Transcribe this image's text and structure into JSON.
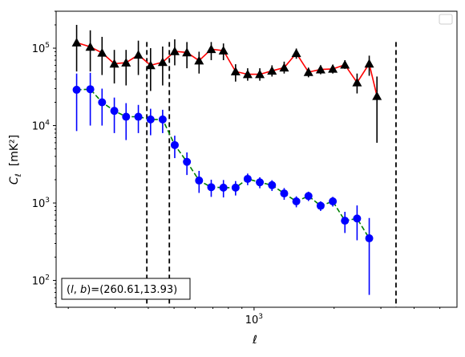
{
  "chart_data": {
    "type": "scatter",
    "xscale": "log",
    "yscale": "log",
    "xlim": [
      180,
      5800
    ],
    "ylim": [
      45,
      300000
    ],
    "xlabel": "ℓ",
    "ylabel": "C_ℓ  [mK²]",
    "x_tick_labels": [
      {
        "value": 1000,
        "label": "10^3"
      }
    ],
    "y_tick_labels": [
      {
        "value": 100,
        "label": "10^2"
      },
      {
        "value": 1000,
        "label": "10^3"
      },
      {
        "value": 10000,
        "label": "10^4"
      },
      {
        "value": 100000,
        "label": "10^5"
      }
    ],
    "annotation": "(l, b)=(260.61,13.93)",
    "legend": {
      "placement": "top-right",
      "entries": []
    },
    "vlines": [
      395,
      480,
      3420
    ],
    "series": [
      {
        "marker": "triangle",
        "marker_color": "#000000",
        "line_color": "#ff0000",
        "line_style": "solid",
        "points": [
          {
            "x": 215,
            "y": 118000,
            "lo": 50000,
            "hi": 200000
          },
          {
            "x": 242,
            "y": 104000,
            "lo": 50000,
            "hi": 170000
          },
          {
            "x": 268,
            "y": 87000,
            "lo": 45000,
            "hi": 140000
          },
          {
            "x": 298,
            "y": 63000,
            "lo": 35000,
            "hi": 95000
          },
          {
            "x": 330,
            "y": 65000,
            "lo": 33000,
            "hi": 95000
          },
          {
            "x": 367,
            "y": 82000,
            "lo": 45000,
            "hi": 125000
          },
          {
            "x": 408,
            "y": 60000,
            "lo": 28000,
            "hi": 100000
          },
          {
            "x": 453,
            "y": 66000,
            "lo": 33000,
            "hi": 105000
          },
          {
            "x": 503,
            "y": 91000,
            "lo": 60000,
            "hi": 130000
          },
          {
            "x": 559,
            "y": 88000,
            "lo": 55000,
            "hi": 120000
          },
          {
            "x": 621,
            "y": 69000,
            "lo": 47000,
            "hi": 90000
          },
          {
            "x": 690,
            "y": 97000,
            "lo": 70000,
            "hi": 120000
          },
          {
            "x": 767,
            "y": 93000,
            "lo": 70000,
            "hi": 115000
          },
          {
            "x": 852,
            "y": 50000,
            "lo": 37000,
            "hi": 62000
          },
          {
            "x": 946,
            "y": 46000,
            "lo": 38000,
            "hi": 55000
          },
          {
            "x": 1051,
            "y": 46000,
            "lo": 38000,
            "hi": 55000
          },
          {
            "x": 1168,
            "y": 51000,
            "lo": 43000,
            "hi": 60000
          },
          {
            "x": 1298,
            "y": 56000,
            "lo": 47000,
            "hi": 67000
          },
          {
            "x": 1442,
            "y": 86000,
            "lo": 73000,
            "hi": 99000
          },
          {
            "x": 1602,
            "y": 49000,
            "lo": 42000,
            "hi": 56000
          },
          {
            "x": 1780,
            "y": 53000,
            "lo": 46000,
            "hi": 60000
          },
          {
            "x": 1978,
            "y": 54000,
            "lo": 47000,
            "hi": 61000
          },
          {
            "x": 2197,
            "y": 61000,
            "lo": 54000,
            "hi": 70000
          },
          {
            "x": 2441,
            "y": 36000,
            "lo": 26000,
            "hi": 47000
          },
          {
            "x": 2712,
            "y": 63000,
            "lo": 44000,
            "hi": 80000
          },
          {
            "x": 2900,
            "y": 24000,
            "lo": 6000,
            "hi": 43000
          }
        ]
      },
      {
        "marker": "circle",
        "marker_color": "#0000ff",
        "line_color": "#008000",
        "line_style": "dashed",
        "points": [
          {
            "x": 215,
            "y": 29000,
            "lo": 8500,
            "hi": 47000
          },
          {
            "x": 242,
            "y": 29500,
            "lo": 10000,
            "hi": 48000
          },
          {
            "x": 268,
            "y": 20000,
            "lo": 10000,
            "hi": 30000
          },
          {
            "x": 298,
            "y": 15500,
            "lo": 8000,
            "hi": 23000
          },
          {
            "x": 330,
            "y": 13000,
            "lo": 6500,
            "hi": 19500
          },
          {
            "x": 367,
            "y": 13000,
            "lo": 8000,
            "hi": 18500
          },
          {
            "x": 408,
            "y": 12000,
            "lo": 7500,
            "hi": 16500
          },
          {
            "x": 453,
            "y": 12000,
            "lo": 8000,
            "hi": 16000
          },
          {
            "x": 503,
            "y": 5600,
            "lo": 3800,
            "hi": 7400
          },
          {
            "x": 559,
            "y": 3400,
            "lo": 2300,
            "hi": 4500
          },
          {
            "x": 621,
            "y": 1950,
            "lo": 1350,
            "hi": 2600
          },
          {
            "x": 690,
            "y": 1600,
            "lo": 1200,
            "hi": 2000
          },
          {
            "x": 767,
            "y": 1580,
            "lo": 1180,
            "hi": 1980
          },
          {
            "x": 852,
            "y": 1580,
            "lo": 1250,
            "hi": 1920
          },
          {
            "x": 946,
            "y": 2050,
            "lo": 1700,
            "hi": 2400
          },
          {
            "x": 1051,
            "y": 1850,
            "lo": 1550,
            "hi": 2150
          },
          {
            "x": 1168,
            "y": 1700,
            "lo": 1430,
            "hi": 1970
          },
          {
            "x": 1298,
            "y": 1330,
            "lo": 1100,
            "hi": 1560
          },
          {
            "x": 1442,
            "y": 1050,
            "lo": 880,
            "hi": 1220
          },
          {
            "x": 1602,
            "y": 1230,
            "lo": 1060,
            "hi": 1400
          },
          {
            "x": 1780,
            "y": 920,
            "lo": 790,
            "hi": 1050
          },
          {
            "x": 1978,
            "y": 1050,
            "lo": 900,
            "hi": 1200
          },
          {
            "x": 2197,
            "y": 590,
            "lo": 410,
            "hi": 770
          },
          {
            "x": 2441,
            "y": 630,
            "lo": 330,
            "hi": 930
          },
          {
            "x": 2712,
            "y": 350,
            "lo": 65,
            "hi": 640
          }
        ]
      }
    ]
  }
}
